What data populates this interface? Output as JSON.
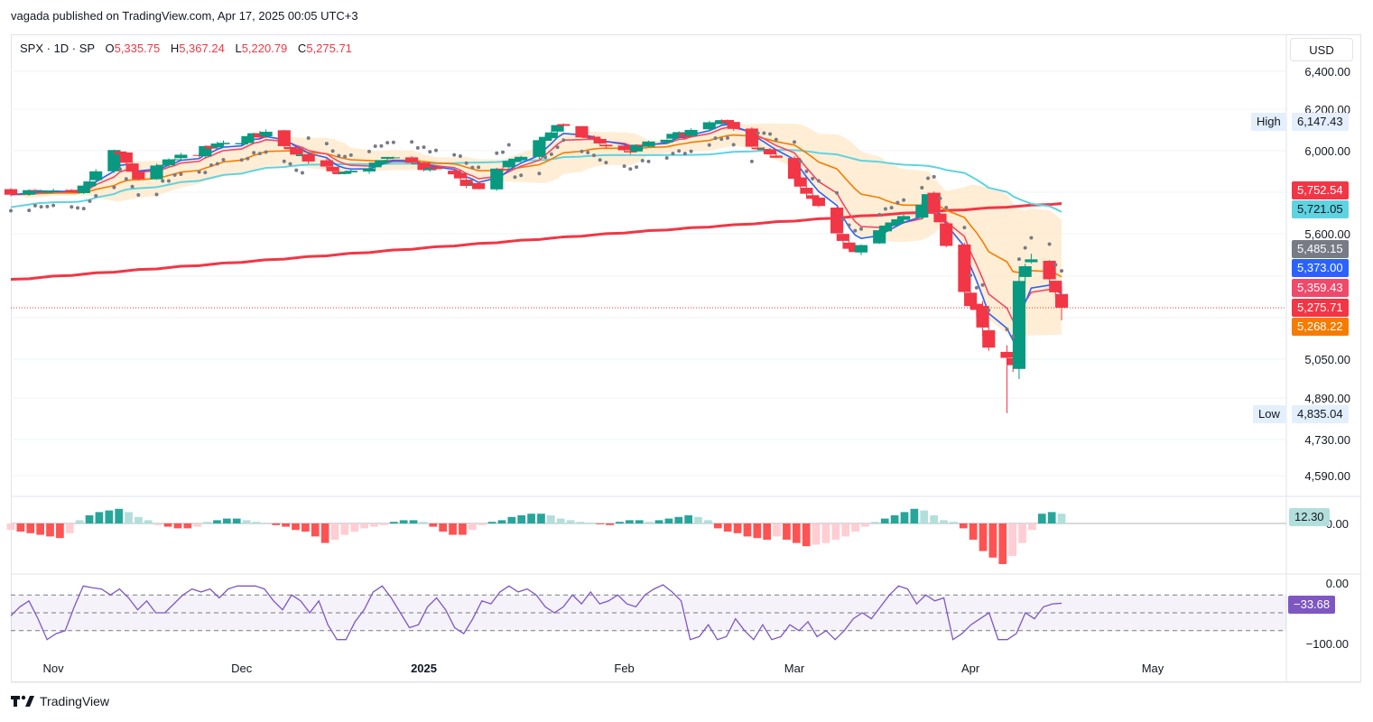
{
  "publish_line": "vagada published on TradingView.com, Apr 17, 2025 00:05 UTC+3",
  "legend": {
    "symbol": "SPX · 1D · SP",
    "o_label": "O",
    "o_value": "5,335.75",
    "h_label": "H",
    "h_value": "5,367.24",
    "l_label": "L",
    "l_value": "5,220.79",
    "c_label": "C",
    "c_value": "5,275.71"
  },
  "currency_button": "USD",
  "high_label": "High",
  "low_label": "Low",
  "price_axis": {
    "ticks": [
      "6,400.00",
      "6,200.00",
      "6,000.00",
      "5,600.00",
      "5,050.00",
      "4,890.00",
      "4,730.00",
      "4,590.00"
    ]
  },
  "macd_axis_tick": "0.00",
  "rsi_axis_ticks": [
    "0.00",
    "−100.00"
  ],
  "price_tags": [
    {
      "name": "high",
      "text": "6,147.43",
      "bg": "#e3effd",
      "fg": "#131722"
    },
    {
      "name": "sma200",
      "text": "5,752.54",
      "bg": "#f23645",
      "fg": "#ffffff"
    },
    {
      "name": "sma50",
      "text": "5,721.05",
      "bg": "#5fd3e0",
      "fg": "#131722"
    },
    {
      "name": "psar",
      "text": "5,485.15",
      "bg": "#787b86",
      "fg": "#ffffff"
    },
    {
      "name": "ema-fast",
      "text": "5,373.00",
      "bg": "#2962ff",
      "fg": "#ffffff"
    },
    {
      "name": "ema-mid",
      "text": "5,359.43",
      "bg": "#f0496a",
      "fg": "#ffffff"
    },
    {
      "name": "close",
      "text": "5,275.71",
      "bg": "#f23645",
      "fg": "#ffffff"
    },
    {
      "name": "ema-slow",
      "text": "5,268.22",
      "bg": "#f57c00",
      "fg": "#ffffff"
    },
    {
      "name": "low",
      "text": "4,835.04",
      "bg": "#e3effd",
      "fg": "#131722"
    },
    {
      "name": "macd-hist",
      "text": "12.30",
      "bg": "#b2dfdb",
      "fg": "#131722"
    },
    {
      "name": "williams-r",
      "text": "−33.68",
      "bg": "#7e57c2",
      "fg": "#ffffff"
    }
  ],
  "x_axis_labels": [
    "Nov",
    "Dec",
    "2025",
    "Feb",
    "Mar",
    "Apr",
    "May"
  ],
  "footer_brand": "TradingView",
  "colors": {
    "up": "#089981",
    "down": "#f23645",
    "sma50": "#5fd3e0",
    "sma200": "#f23645",
    "ema_fast": "#2962ff",
    "ema_mid": "#f0496a",
    "ema_slow": "#f57c00",
    "psar": "#787b86",
    "williams": "#7e57c2",
    "grid": "#f0f3fa"
  },
  "chart_data": [
    {
      "type": "candlestick",
      "symbol": "SPX",
      "interval": "1D",
      "x_range": [
        "2024-10-25",
        "2025-05-23"
      ],
      "y_range": [
        4540,
        6520
      ],
      "grid": true,
      "ohlc_last": {
        "open": 5335.75,
        "high": 5367.24,
        "low": 5220.79,
        "close": 5275.71
      },
      "period_high": 6147.43,
      "period_low": 4835.04,
      "close_series": [
        {
          "date": "2024-10-25",
          "close": 5808
        },
        {
          "date": "2024-11-05",
          "close": 5782
        },
        {
          "date": "2024-11-11",
          "close": 6001
        },
        {
          "date": "2024-11-15",
          "close": 5870
        },
        {
          "date": "2024-11-22",
          "close": 5969
        },
        {
          "date": "2024-12-06",
          "close": 6090
        },
        {
          "date": "2024-12-18",
          "close": 5872
        },
        {
          "date": "2024-12-27",
          "close": 5970
        },
        {
          "date": "2025-01-10",
          "close": 5827
        },
        {
          "date": "2025-01-23",
          "close": 6118
        },
        {
          "date": "2025-02-03",
          "close": 5994
        },
        {
          "date": "2025-02-19",
          "close": 6144
        },
        {
          "date": "2025-02-28",
          "close": 5954
        },
        {
          "date": "2025-03-10",
          "close": 5614
        },
        {
          "date": "2025-03-13",
          "close": 5521
        },
        {
          "date": "2025-03-25",
          "close": 5776
        },
        {
          "date": "2025-04-04",
          "close": 5074
        },
        {
          "date": "2025-04-08",
          "close": 4982
        },
        {
          "date": "2025-04-09",
          "close": 5457
        },
        {
          "date": "2025-04-14",
          "close": 5406
        },
        {
          "date": "2025-04-16",
          "close": 5275.71
        }
      ],
      "series": [
        {
          "name": "SMA 200",
          "last": 5752.54
        },
        {
          "name": "SMA 50",
          "last": 5721.05
        },
        {
          "name": "Parabolic SAR",
          "last": 5485.15
        },
        {
          "name": "EMA fast",
          "last": 5373.0
        },
        {
          "name": "EMA mid",
          "last": 5359.43
        },
        {
          "name": "EMA slow",
          "last": 5268.22
        }
      ]
    },
    {
      "type": "bar",
      "name": "MACD histogram",
      "last": 12.3,
      "values": [
        -8,
        -10,
        -12,
        -14,
        -16,
        -18,
        -12,
        4,
        10,
        14,
        16,
        18,
        14,
        8,
        4,
        -2,
        -4,
        -6,
        -6,
        -4,
        2,
        4,
        6,
        6,
        4,
        2,
        0,
        -2,
        -4,
        -8,
        -10,
        -16,
        -24,
        -20,
        -14,
        -10,
        -6,
        -4,
        -2,
        2,
        4,
        4,
        2,
        -4,
        -10,
        -14,
        -14,
        -8,
        -2,
        2,
        4,
        8,
        10,
        12,
        12,
        10,
        6,
        4,
        2,
        1,
        -1,
        -2,
        2,
        4,
        4,
        2,
        4,
        6,
        8,
        10,
        8,
        4,
        -6,
        -10,
        -12,
        -16,
        -18,
        -20,
        -16,
        -20,
        -24,
        -28,
        -26,
        -24,
        -20,
        -16,
        -10,
        -4,
        2,
        6,
        10,
        14,
        18,
        16,
        10,
        4,
        2,
        -6,
        -20,
        -34,
        -42,
        -50,
        -40,
        -24,
        -8,
        12,
        14,
        12
      ]
    },
    {
      "type": "line",
      "name": "Williams %R",
      "last": -33.68,
      "ylim": [
        -100,
        0
      ],
      "values": [
        -55,
        -40,
        -30,
        -60,
        -95,
        -85,
        -80,
        -40,
        -5,
        -8,
        -10,
        -20,
        -10,
        -25,
        -45,
        -30,
        -50,
        -50,
        -35,
        -20,
        -10,
        -15,
        -10,
        -25,
        -10,
        -5,
        -5,
        -5,
        -10,
        -30,
        -45,
        -20,
        -30,
        -50,
        -30,
        -70,
        -95,
        -95,
        -65,
        -45,
        -15,
        -5,
        -25,
        -50,
        -75,
        -70,
        -40,
        -25,
        -45,
        -75,
        -85,
        -60,
        -30,
        -35,
        -15,
        -5,
        -15,
        -10,
        -20,
        -40,
        -50,
        -40,
        -20,
        -35,
        -15,
        -35,
        -30,
        -20,
        -35,
        -40,
        -20,
        -10,
        -3,
        -15,
        -30,
        -95,
        -90,
        -70,
        -95,
        -90,
        -60,
        -80,
        -95,
        -70,
        -95,
        -90,
        -70,
        -80,
        -65,
        -90,
        -80,
        -95,
        -80,
        -60,
        -50,
        -60,
        -40,
        -20,
        -5,
        -10,
        -35,
        -20,
        -30,
        -25,
        -95,
        -85,
        -70,
        -60,
        -50,
        -95,
        -95,
        -85,
        -50,
        -60,
        -40,
        -35,
        -34
      ]
    }
  ]
}
